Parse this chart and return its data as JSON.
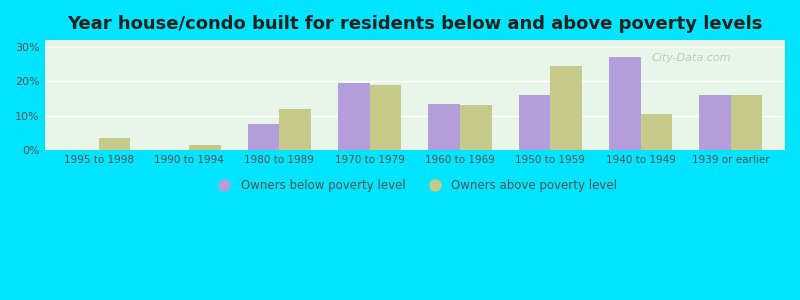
{
  "title": "Year house/condo built for residents below and above poverty levels",
  "categories": [
    "1995 to 1998",
    "1990 to 1994",
    "1980 to 1989",
    "1970 to 1979",
    "1960 to 1969",
    "1950 to 1959",
    "1940 to 1949",
    "1939 or earlier"
  ],
  "below_poverty": [
    0.0,
    0.0,
    7.5,
    19.5,
    13.5,
    16.0,
    27.0,
    16.0
  ],
  "above_poverty": [
    3.5,
    1.5,
    12.0,
    19.0,
    13.0,
    24.5,
    10.5,
    16.0
  ],
  "below_color": "#b39ddb",
  "above_color": "#c5c98a",
  "ylabel_ticks": [
    0,
    10,
    20,
    30
  ],
  "ylabel_labels": [
    "0%",
    "10%",
    "20%",
    "30%"
  ],
  "ylim": [
    0,
    32
  ],
  "bg_outer": "#00e5ff",
  "bg_plot": "#e8f5e9",
  "watermark": "City-Data.com",
  "legend_below": "Owners below poverty level",
  "legend_above": "Owners above poverty level",
  "title_fontsize": 13,
  "bar_width": 0.35
}
